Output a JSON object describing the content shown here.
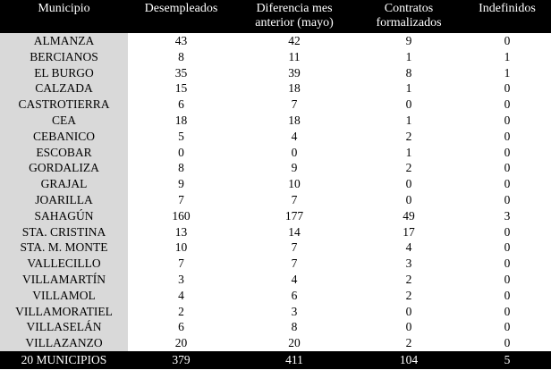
{
  "chart_data": {
    "type": "table",
    "columns": [
      "Municipio",
      "Desempleados",
      "Diferencia mes anterior (mayo)",
      "Contratos formalizados",
      "Indefinidos"
    ],
    "header_lines": [
      [
        "Municipio"
      ],
      [
        "Desempleados"
      ],
      [
        "Diferencia mes",
        "anterior (mayo)"
      ],
      [
        "Contratos",
        "formalizados"
      ],
      [
        "Indefinidos"
      ]
    ],
    "rows": [
      [
        "ALMANZA",
        43,
        42,
        9,
        0
      ],
      [
        "BERCIANOS",
        8,
        11,
        1,
        1
      ],
      [
        "EL BURGO",
        35,
        39,
        8,
        1
      ],
      [
        "CALZADA",
        15,
        18,
        1,
        0
      ],
      [
        "CASTROTIERRA",
        6,
        7,
        0,
        0
      ],
      [
        "CEA",
        18,
        18,
        1,
        0
      ],
      [
        "CEBANICO",
        5,
        4,
        2,
        0
      ],
      [
        "ESCOBAR",
        0,
        0,
        1,
        0
      ],
      [
        "GORDALIZA",
        8,
        9,
        2,
        0
      ],
      [
        "GRAJAL",
        9,
        10,
        0,
        0
      ],
      [
        "JOARILLA",
        7,
        7,
        0,
        0
      ],
      [
        "SAHAGÚN",
        160,
        177,
        49,
        3
      ],
      [
        "STA. CRISTINA",
        13,
        14,
        17,
        0
      ],
      [
        "STA. M. MONTE",
        10,
        7,
        4,
        0
      ],
      [
        "VALLECILLO",
        7,
        7,
        3,
        0
      ],
      [
        "VILLAMARTÍN",
        3,
        4,
        2,
        0
      ],
      [
        "VILLAMOL",
        4,
        6,
        2,
        0
      ],
      [
        "VILLAMORATIEL",
        2,
        3,
        0,
        0
      ],
      [
        "VILLASELÁN",
        6,
        8,
        0,
        0
      ],
      [
        "VILLAZANZO",
        20,
        20,
        2,
        0
      ]
    ],
    "footer": [
      "20 MUNICIPIOS",
      379,
      411,
      104,
      5
    ],
    "layout": {
      "grid": "off",
      "legend": "none",
      "header_position": "top",
      "totals_position": "bottom"
    }
  },
  "colors": {
    "header_bg": "#000000",
    "header_text": "#ffffff",
    "label_column_bg": "#d9d9d9",
    "body_bg": "#ffffff",
    "body_text": "#000000"
  }
}
